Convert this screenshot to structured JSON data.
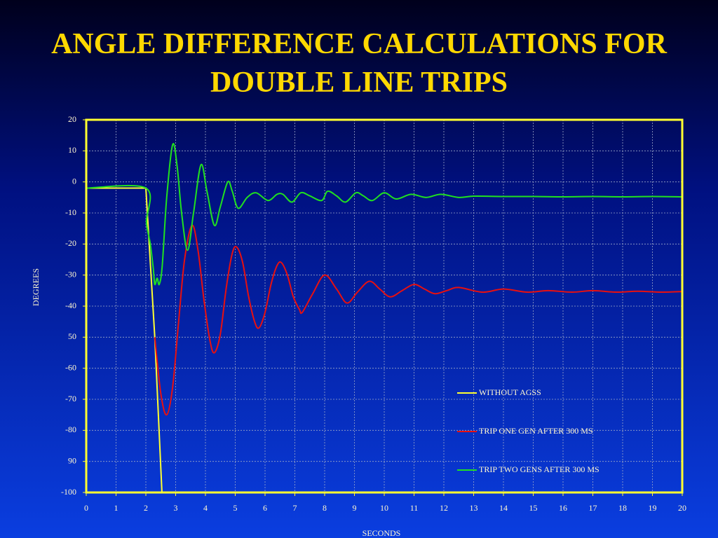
{
  "chart_data": {
    "type": "line",
    "title": "ANGLE DIFFERENCE CALCULATIONS FOR DOUBLE LINE TRIPS",
    "x_label": "SECONDS",
    "y_label": "DEGREES",
    "xlim": [
      0,
      20
    ],
    "ylim": [
      -100,
      20
    ],
    "xticks": [
      0,
      1,
      2,
      3,
      4,
      5,
      6,
      7,
      8,
      9,
      10,
      11,
      12,
      13,
      14,
      15,
      16,
      17,
      18,
      19,
      20
    ],
    "yticks": [
      20,
      10,
      0,
      -10,
      -20,
      -30,
      -40,
      {
        "value": -50,
        "label": "50"
      },
      -60,
      -70,
      -80,
      {
        "value": -90,
        "label": "90"
      },
      -100
    ],
    "grid": true,
    "legend": "lower right",
    "series": [
      {
        "name": "WITHOUT AGSS",
        "color": "#ffff30",
        "x": [
          0,
          2,
          2.1,
          2.3,
          2.54
        ],
        "values": [
          -2,
          -2,
          -18,
          -50,
          -100
        ]
      },
      {
        "name": "TRIP ONE GEN AFTER 300 MS",
        "color": "#e81010",
        "x": [
          2.3,
          2.5,
          2.7,
          2.9,
          3.1,
          3.3,
          3.55,
          3.75,
          3.95,
          4.15,
          4.3,
          4.5,
          4.7,
          4.9,
          5.05,
          5.25,
          5.45,
          5.65,
          5.8,
          6.0,
          6.2,
          6.4,
          6.55,
          6.75,
          6.95,
          7.15,
          7.25,
          7.6,
          8.0,
          8.4,
          8.75,
          9.1,
          9.5,
          9.85,
          10.2,
          10.6,
          11.0,
          11.35,
          11.7,
          12.1,
          12.5,
          13.3,
          14.0,
          14.8,
          15.5,
          16.3,
          17.0,
          17.8,
          18.5,
          19.3,
          20.0
        ],
        "values": [
          -50,
          -68,
          -75,
          -66,
          -45,
          -25,
          -14,
          -22,
          -38,
          -51,
          -55,
          -49,
          -34,
          -23,
          -21,
          -26,
          -37,
          -45,
          -47,
          -42,
          -33,
          -27,
          -26,
          -30,
          -37,
          -41,
          -42,
          -36,
          -30,
          -34.5,
          -39,
          -35.5,
          -32,
          -34.5,
          -37,
          -35,
          -33,
          -34.5,
          -36,
          -35,
          -34,
          -35.5,
          -34.5,
          -35.5,
          -35,
          -35.5,
          -35,
          -35.5,
          -35.2,
          -35.5,
          -35.3
        ]
      },
      {
        "name": "TRIP TWO GENS AFTER 300 MS",
        "color": "#20e020",
        "x": [
          0,
          2,
          2.02,
          2.15,
          2.25,
          2.3,
          2.38,
          2.45,
          2.55,
          2.7,
          2.9,
          3.05,
          3.2,
          3.4,
          3.6,
          3.85,
          4.05,
          4.3,
          4.5,
          4.75,
          4.9,
          5.1,
          5.4,
          5.7,
          6.1,
          6.4,
          6.6,
          6.9,
          7.2,
          7.5,
          7.9,
          8.1,
          8.4,
          8.7,
          9.05,
          9.3,
          9.6,
          10.0,
          10.4,
          10.9,
          11.4,
          11.9,
          12.5,
          13,
          14,
          15,
          16,
          17,
          18,
          19,
          20
        ],
        "values": [
          -2,
          -2,
          -13,
          -20,
          -28,
          -33,
          -31,
          -33,
          -27,
          -5,
          12,
          5,
          -10,
          -22,
          -10,
          5.5,
          -3,
          -14,
          -8,
          0,
          -3,
          -8.5,
          -5,
          -3.5,
          -6,
          -4,
          -4,
          -6.5,
          -3.5,
          -4.5,
          -6,
          -3,
          -4.5,
          -6.5,
          -3.5,
          -4.5,
          -6,
          -3.5,
          -5.5,
          -4,
          -5,
          -4,
          -5,
          -4.6,
          -4.7,
          -4.7,
          -4.8,
          -4.7,
          -4.8,
          -4.7,
          -4.8
        ]
      }
    ]
  }
}
